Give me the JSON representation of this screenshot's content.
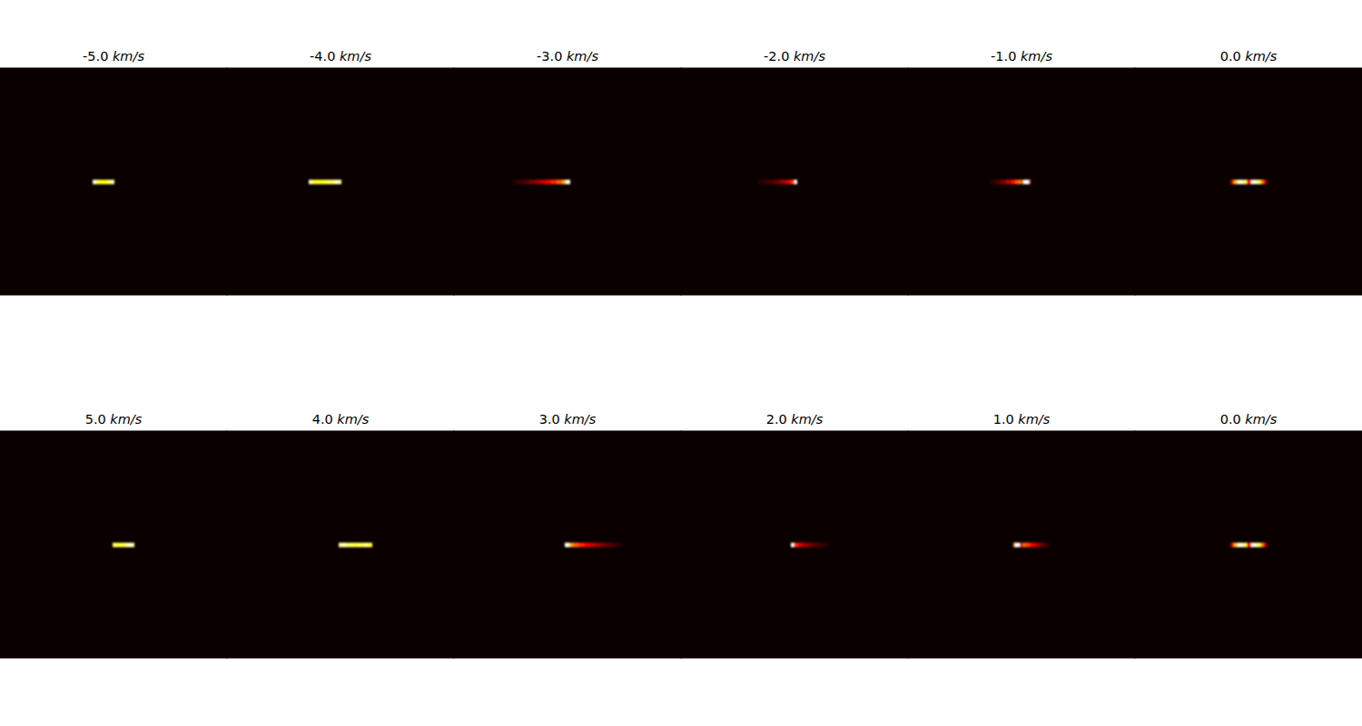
{
  "chart_data": [
    {
      "type": "heatmap",
      "title": "-5.0 km/s",
      "xlim": [
        0,
        250
      ],
      "ylim": [
        0,
        250
      ],
      "tick_labels": false,
      "background": 0,
      "zlim": [
        0,
        1
      ],
      "y": [
        123,
        128
      ],
      "x": [
        102,
        106,
        110,
        114,
        118,
        122,
        126
      ],
      "values": [
        0.95,
        0.8,
        0.75,
        0.75,
        0.85,
        0.9
      ]
    },
    {
      "type": "heatmap",
      "title": "-4.0 km/s",
      "xlim": [
        0,
        250
      ],
      "ylim": [
        0,
        250
      ],
      "tick_labels": false,
      "background": 0,
      "zlim": [
        0,
        1
      ],
      "y": [
        123,
        128
      ],
      "x": [
        90,
        94,
        98,
        102,
        106,
        110,
        114,
        118,
        122,
        126
      ],
      "values": [
        0.9,
        0.75,
        0.8,
        0.75,
        0.8,
        0.85,
        0.8,
        0.95,
        0.9
      ]
    },
    {
      "type": "heatmap",
      "title": "-3.0 km/s",
      "xlim": [
        0,
        250
      ],
      "ylim": [
        0,
        250
      ],
      "tick_labels": false,
      "background": 0,
      "zlim": [
        0,
        1
      ],
      "y": [
        123,
        128
      ],
      "x": [
        65,
        71,
        77,
        83,
        89,
        95,
        101,
        107,
        113,
        119,
        123,
        128
      ],
      "values": [
        0.05,
        0.08,
        0.12,
        0.17,
        0.22,
        0.28,
        0.35,
        0.42,
        0.5,
        0.62,
        0.98
      ]
    },
    {
      "type": "heatmap",
      "title": "-2.0 km/s",
      "xlim": [
        0,
        250
      ],
      "ylim": [
        0,
        250
      ],
      "tick_labels": false,
      "background": 0,
      "zlim": [
        0,
        1
      ],
      "y": [
        123,
        128
      ],
      "x": [
        85,
        91,
        97,
        103,
        109,
        115,
        119,
        123,
        125,
        128
      ],
      "values": [
        0.04,
        0.07,
        0.1,
        0.15,
        0.22,
        0.3,
        0.38,
        0.5,
        1.0
      ]
    },
    {
      "type": "heatmap",
      "title": "-1.0 km/s",
      "xlim": [
        0,
        250
      ],
      "ylim": [
        0,
        250
      ],
      "tick_labels": false,
      "background": 0,
      "zlim": [
        0,
        1
      ],
      "y": [
        123,
        128
      ],
      "x": [
        90,
        96,
        102,
        108,
        114,
        118,
        122,
        125,
        127,
        133,
        135
      ],
      "values": [
        0.05,
        0.1,
        0.18,
        0.28,
        0.38,
        0.48,
        0.55,
        0.3,
        1.0,
        0.5
      ]
    },
    {
      "type": "heatmap",
      "title": "0.0 km/s",
      "xlim": [
        0,
        250
      ],
      "ylim": [
        0,
        250
      ],
      "tick_labels": false,
      "background": 0,
      "zlim": [
        0,
        1
      ],
      "y": [
        123,
        128
      ],
      "x": [
        105,
        109,
        113,
        118,
        123,
        128,
        133,
        138,
        141,
        145
      ],
      "values": [
        0.3,
        0.65,
        0.98,
        0.85,
        0.4,
        0.98,
        0.85,
        0.6,
        0.3
      ]
    },
    {
      "type": "heatmap",
      "title": "5.0 km/s",
      "xlim": [
        0,
        250
      ],
      "ylim": [
        0,
        250
      ],
      "tick_labels": false,
      "background": 0,
      "zlim": [
        0,
        1
      ],
      "y": [
        123,
        128
      ],
      "x": [
        124,
        128,
        132,
        136,
        140,
        144,
        148
      ],
      "values": [
        0.85,
        0.8,
        0.8,
        0.85,
        0.95,
        0.9
      ]
    },
    {
      "type": "heatmap",
      "title": "4.0 km/s",
      "xlim": [
        0,
        250
      ],
      "ylim": [
        0,
        250
      ],
      "tick_labels": false,
      "background": 0,
      "zlim": [
        0,
        1
      ],
      "y": [
        123,
        128
      ],
      "x": [
        123,
        127,
        131,
        135,
        139,
        143,
        147,
        151,
        155,
        160
      ],
      "values": [
        0.9,
        0.95,
        0.8,
        0.85,
        0.8,
        0.85,
        0.8,
        0.9,
        0.8
      ]
    },
    {
      "type": "heatmap",
      "title": "3.0 km/s",
      "xlim": [
        0,
        250
      ],
      "ylim": [
        0,
        250
      ],
      "tick_labels": false,
      "background": 0,
      "zlim": [
        0,
        1
      ],
      "y": [
        123,
        128
      ],
      "x": [
        122,
        127,
        131,
        137,
        143,
        149,
        155,
        161,
        167,
        173,
        179,
        185
      ],
      "values": [
        0.98,
        0.62,
        0.5,
        0.42,
        0.35,
        0.28,
        0.22,
        0.17,
        0.12,
        0.08,
        0.05
      ]
    },
    {
      "type": "heatmap",
      "title": "2.0 km/s",
      "xlim": [
        0,
        250
      ],
      "ylim": [
        0,
        250
      ],
      "tick_labels": false,
      "background": 0,
      "zlim": [
        0,
        1
      ],
      "y": [
        123,
        128
      ],
      "x": [
        121,
        124,
        126,
        130,
        134,
        140,
        146,
        152,
        157,
        162
      ],
      "values": [
        1.0,
        0.5,
        0.38,
        0.3,
        0.22,
        0.15,
        0.1,
        0.07,
        0.04
      ]
    },
    {
      "type": "heatmap",
      "title": "1.0 km/s",
      "xlim": [
        0,
        250
      ],
      "ylim": [
        0,
        250
      ],
      "tick_labels": false,
      "background": 0,
      "zlim": [
        0,
        1
      ],
      "y": [
        123,
        128
      ],
      "x": [
        116,
        118,
        123,
        126,
        130,
        134,
        139,
        144,
        149,
        155
      ],
      "values": [
        0.6,
        1.0,
        0.3,
        0.5,
        0.45,
        0.35,
        0.25,
        0.15,
        0.07
      ]
    },
    {
      "type": "heatmap",
      "title": "0.0 km/s",
      "xlim": [
        0,
        250
      ],
      "ylim": [
        0,
        250
      ],
      "tick_labels": false,
      "background": 0,
      "zlim": [
        0,
        1
      ],
      "y": [
        123,
        128
      ],
      "x": [
        105,
        109,
        113,
        118,
        123,
        128,
        133,
        138,
        141,
        145
      ],
      "values": [
        0.3,
        0.65,
        0.98,
        0.85,
        0.4,
        0.98,
        0.85,
        0.6,
        0.3
      ]
    }
  ]
}
